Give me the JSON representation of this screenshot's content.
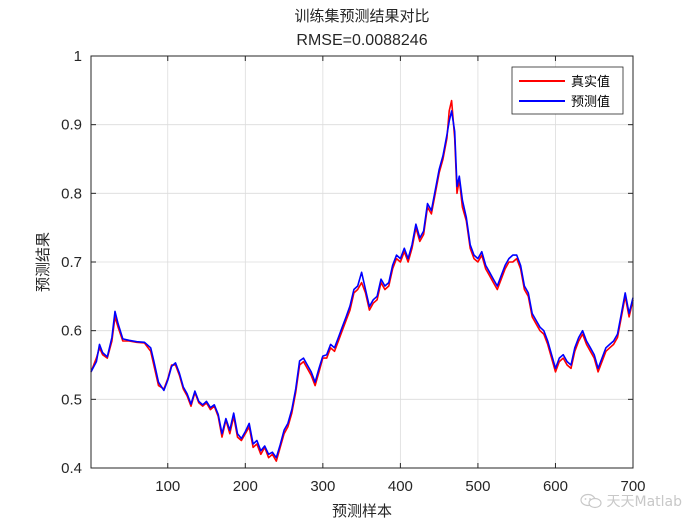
{
  "chart_data": {
    "type": "line",
    "title": "训练集预测结果对比",
    "subtitle": "RMSE=0.0088246",
    "xlabel": "预测样本",
    "ylabel": "预测结果",
    "xlim": [
      1,
      700
    ],
    "ylim": [
      0.4,
      1.0
    ],
    "xticks": [
      100,
      200,
      300,
      400,
      500,
      600,
      700
    ],
    "yticks": [
      0.4,
      0.5,
      0.6,
      0.7,
      0.8,
      0.9,
      1.0
    ],
    "xtick_labels": [
      "100",
      "200",
      "300",
      "400",
      "500",
      "600",
      "700"
    ],
    "ytick_labels": [
      "0.4",
      "0.5",
      "0.6",
      "0.7",
      "0.8",
      "0.9",
      "1"
    ],
    "grid": true,
    "legend_position": "top-right",
    "colors": {
      "true_series": "#ff0000",
      "pred_series": "#0000ff"
    },
    "series": [
      {
        "name": "真实值",
        "color": "#ff0000",
        "x": [
          1,
          8,
          12,
          16,
          22,
          28,
          32,
          36,
          42,
          50,
          60,
          70,
          78,
          82,
          88,
          95,
          100,
          105,
          110,
          115,
          120,
          125,
          130,
          135,
          140,
          145,
          150,
          155,
          160,
          165,
          170,
          175,
          180,
          185,
          190,
          195,
          200,
          205,
          210,
          215,
          220,
          225,
          230,
          235,
          240,
          245,
          250,
          255,
          260,
          265,
          270,
          275,
          280,
          285,
          290,
          295,
          300,
          305,
          310,
          315,
          320,
          325,
          330,
          335,
          340,
          345,
          350,
          355,
          360,
          365,
          370,
          375,
          380,
          385,
          390,
          395,
          400,
          405,
          410,
          415,
          420,
          425,
          430,
          435,
          440,
          445,
          450,
          455,
          460,
          463,
          466,
          470,
          473,
          476,
          480,
          485,
          490,
          495,
          500,
          505,
          510,
          515,
          520,
          525,
          530,
          535,
          540,
          545,
          550,
          555,
          560,
          565,
          570,
          575,
          580,
          585,
          590,
          595,
          600,
          605,
          610,
          615,
          620,
          625,
          630,
          635,
          640,
          645,
          650,
          655,
          660,
          665,
          670,
          675,
          680,
          685,
          690,
          695,
          700
        ],
        "values": [
          0.54,
          0.56,
          0.575,
          0.565,
          0.56,
          0.585,
          0.62,
          0.605,
          0.585,
          0.585,
          0.583,
          0.582,
          0.57,
          0.55,
          0.52,
          0.515,
          0.53,
          0.55,
          0.55,
          0.535,
          0.515,
          0.505,
          0.49,
          0.51,
          0.495,
          0.49,
          0.495,
          0.485,
          0.49,
          0.475,
          0.445,
          0.47,
          0.45,
          0.475,
          0.445,
          0.44,
          0.45,
          0.46,
          0.43,
          0.435,
          0.42,
          0.43,
          0.415,
          0.42,
          0.41,
          0.43,
          0.45,
          0.46,
          0.48,
          0.51,
          0.55,
          0.555,
          0.545,
          0.535,
          0.52,
          0.54,
          0.56,
          0.56,
          0.575,
          0.57,
          0.585,
          0.6,
          0.615,
          0.63,
          0.655,
          0.66,
          0.67,
          0.655,
          0.63,
          0.64,
          0.645,
          0.67,
          0.66,
          0.665,
          0.69,
          0.705,
          0.7,
          0.715,
          0.7,
          0.72,
          0.75,
          0.73,
          0.74,
          0.78,
          0.77,
          0.8,
          0.83,
          0.85,
          0.88,
          0.92,
          0.935,
          0.88,
          0.8,
          0.82,
          0.78,
          0.76,
          0.72,
          0.705,
          0.7,
          0.71,
          0.69,
          0.68,
          0.67,
          0.66,
          0.675,
          0.69,
          0.7,
          0.7,
          0.705,
          0.69,
          0.66,
          0.65,
          0.62,
          0.61,
          0.6,
          0.595,
          0.58,
          0.56,
          0.54,
          0.555,
          0.56,
          0.55,
          0.545,
          0.57,
          0.585,
          0.595,
          0.58,
          0.57,
          0.56,
          0.54,
          0.555,
          0.57,
          0.575,
          0.58,
          0.59,
          0.62,
          0.65,
          0.62,
          0.645
        ]
      },
      {
        "name": "预测值",
        "color": "#0000ff",
        "x": [
          1,
          8,
          12,
          16,
          22,
          28,
          32,
          36,
          42,
          50,
          60,
          70,
          78,
          82,
          88,
          95,
          100,
          105,
          110,
          115,
          120,
          125,
          130,
          135,
          140,
          145,
          150,
          155,
          160,
          165,
          170,
          175,
          180,
          185,
          190,
          195,
          200,
          205,
          210,
          215,
          220,
          225,
          230,
          235,
          240,
          245,
          250,
          255,
          260,
          265,
          270,
          275,
          280,
          285,
          290,
          295,
          300,
          305,
          310,
          315,
          320,
          325,
          330,
          335,
          340,
          345,
          350,
          355,
          360,
          365,
          370,
          375,
          380,
          385,
          390,
          395,
          400,
          405,
          410,
          415,
          420,
          425,
          430,
          435,
          440,
          445,
          450,
          455,
          460,
          463,
          466,
          470,
          473,
          476,
          480,
          485,
          490,
          495,
          500,
          505,
          510,
          515,
          520,
          525,
          530,
          535,
          540,
          545,
          550,
          555,
          560,
          565,
          570,
          575,
          580,
          585,
          590,
          595,
          600,
          605,
          610,
          615,
          620,
          625,
          630,
          635,
          640,
          645,
          650,
          655,
          660,
          665,
          670,
          675,
          680,
          685,
          690,
          695,
          700
        ],
        "values": [
          0.54,
          0.555,
          0.58,
          0.568,
          0.562,
          0.59,
          0.628,
          0.61,
          0.588,
          0.586,
          0.584,
          0.583,
          0.575,
          0.556,
          0.525,
          0.513,
          0.528,
          0.548,
          0.553,
          0.538,
          0.518,
          0.508,
          0.493,
          0.512,
          0.497,
          0.492,
          0.497,
          0.488,
          0.492,
          0.478,
          0.45,
          0.472,
          0.455,
          0.48,
          0.45,
          0.443,
          0.453,
          0.465,
          0.435,
          0.44,
          0.425,
          0.432,
          0.42,
          0.423,
          0.415,
          0.434,
          0.455,
          0.465,
          0.485,
          0.515,
          0.556,
          0.56,
          0.55,
          0.54,
          0.525,
          0.545,
          0.563,
          0.565,
          0.58,
          0.575,
          0.59,
          0.605,
          0.62,
          0.636,
          0.66,
          0.665,
          0.685,
          0.66,
          0.635,
          0.645,
          0.65,
          0.675,
          0.665,
          0.67,
          0.695,
          0.71,
          0.705,
          0.72,
          0.705,
          0.725,
          0.755,
          0.735,
          0.745,
          0.785,
          0.775,
          0.805,
          0.835,
          0.855,
          0.885,
          0.905,
          0.92,
          0.89,
          0.81,
          0.825,
          0.79,
          0.765,
          0.725,
          0.71,
          0.705,
          0.715,
          0.695,
          0.685,
          0.675,
          0.665,
          0.68,
          0.695,
          0.705,
          0.71,
          0.71,
          0.695,
          0.665,
          0.655,
          0.625,
          0.615,
          0.605,
          0.6,
          0.585,
          0.565,
          0.545,
          0.56,
          0.565,
          0.555,
          0.55,
          0.575,
          0.59,
          0.6,
          0.585,
          0.575,
          0.565,
          0.545,
          0.56,
          0.575,
          0.58,
          0.585,
          0.595,
          0.625,
          0.655,
          0.625,
          0.648
        ]
      }
    ]
  },
  "watermark": {
    "text": "天天Matlab",
    "icon": "wechat-icon"
  }
}
